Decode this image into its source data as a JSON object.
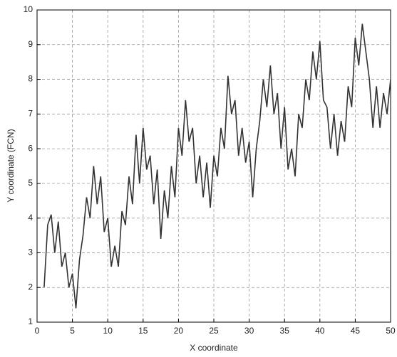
{
  "chart_data": {
    "type": "line",
    "xlabel": "X coordinate",
    "ylabel": "Y coordinate (FCN)",
    "xlim": [
      0,
      50
    ],
    "ylim": [
      1,
      10
    ],
    "xticks": [
      0,
      5,
      10,
      15,
      20,
      25,
      30,
      35,
      40,
      45,
      50
    ],
    "yticks": [
      1,
      2,
      3,
      4,
      5,
      6,
      7,
      8,
      9,
      10
    ],
    "grid": true,
    "x": [
      1,
      1.5,
      2,
      2.5,
      3,
      3.5,
      4,
      4.5,
      5,
      5.5,
      6,
      6.5,
      7,
      7.5,
      8,
      8.5,
      9,
      9.5,
      10,
      10.5,
      11,
      11.5,
      12,
      12.5,
      13,
      13.5,
      14,
      14.5,
      15,
      15.5,
      16,
      16.5,
      17,
      17.5,
      18,
      18.5,
      19,
      19.5,
      20,
      20.5,
      21,
      21.5,
      22,
      22.5,
      23,
      23.5,
      24,
      24.5,
      25,
      25.5,
      26,
      26.5,
      27,
      27.5,
      28,
      28.5,
      29,
      29.5,
      30,
      30.5,
      31,
      31.5,
      32,
      32.5,
      33,
      33.5,
      34,
      34.5,
      35,
      35.5,
      36,
      36.5,
      37,
      37.5,
      38,
      38.5,
      39,
      39.5,
      40,
      40.5,
      41,
      41.5,
      42,
      42.5,
      43,
      43.5,
      44,
      44.5,
      45,
      45.5,
      46,
      46.5,
      47,
      47.5,
      48,
      48.5,
      49,
      49.5,
      50
    ],
    "series": [
      {
        "color": "#333333",
        "values": [
          2.0,
          3.8,
          4.1,
          3.0,
          3.9,
          2.6,
          3.0,
          2.0,
          2.4,
          1.4,
          2.8,
          3.5,
          4.6,
          4.0,
          5.5,
          4.4,
          5.2,
          3.6,
          4.0,
          2.6,
          3.2,
          2.6,
          4.2,
          3.8,
          5.2,
          4.4,
          6.4,
          5.0,
          6.6,
          5.4,
          5.8,
          4.4,
          5.4,
          3.4,
          4.8,
          4.0,
          5.5,
          4.6,
          6.6,
          5.8,
          7.4,
          6.2,
          6.6,
          5.0,
          5.8,
          4.6,
          5.6,
          4.3,
          5.8,
          5.2,
          6.6,
          6.0,
          8.1,
          7.0,
          7.4,
          5.8,
          6.6,
          5.6,
          6.2,
          4.6,
          6.0,
          6.8,
          8.0,
          7.2,
          8.4,
          7.0,
          7.6,
          6.0,
          7.2,
          5.4,
          6.0,
          5.2,
          7.0,
          6.6,
          8.0,
          7.4,
          8.8,
          8.0,
          9.1,
          7.4,
          7.2,
          6.0,
          7.0,
          5.8,
          6.8,
          6.2,
          7.8,
          7.2,
          9.2,
          8.4,
          9.6,
          8.8,
          8.0,
          6.6,
          7.8,
          6.6,
          7.6,
          7.0,
          8.0
        ]
      }
    ]
  }
}
